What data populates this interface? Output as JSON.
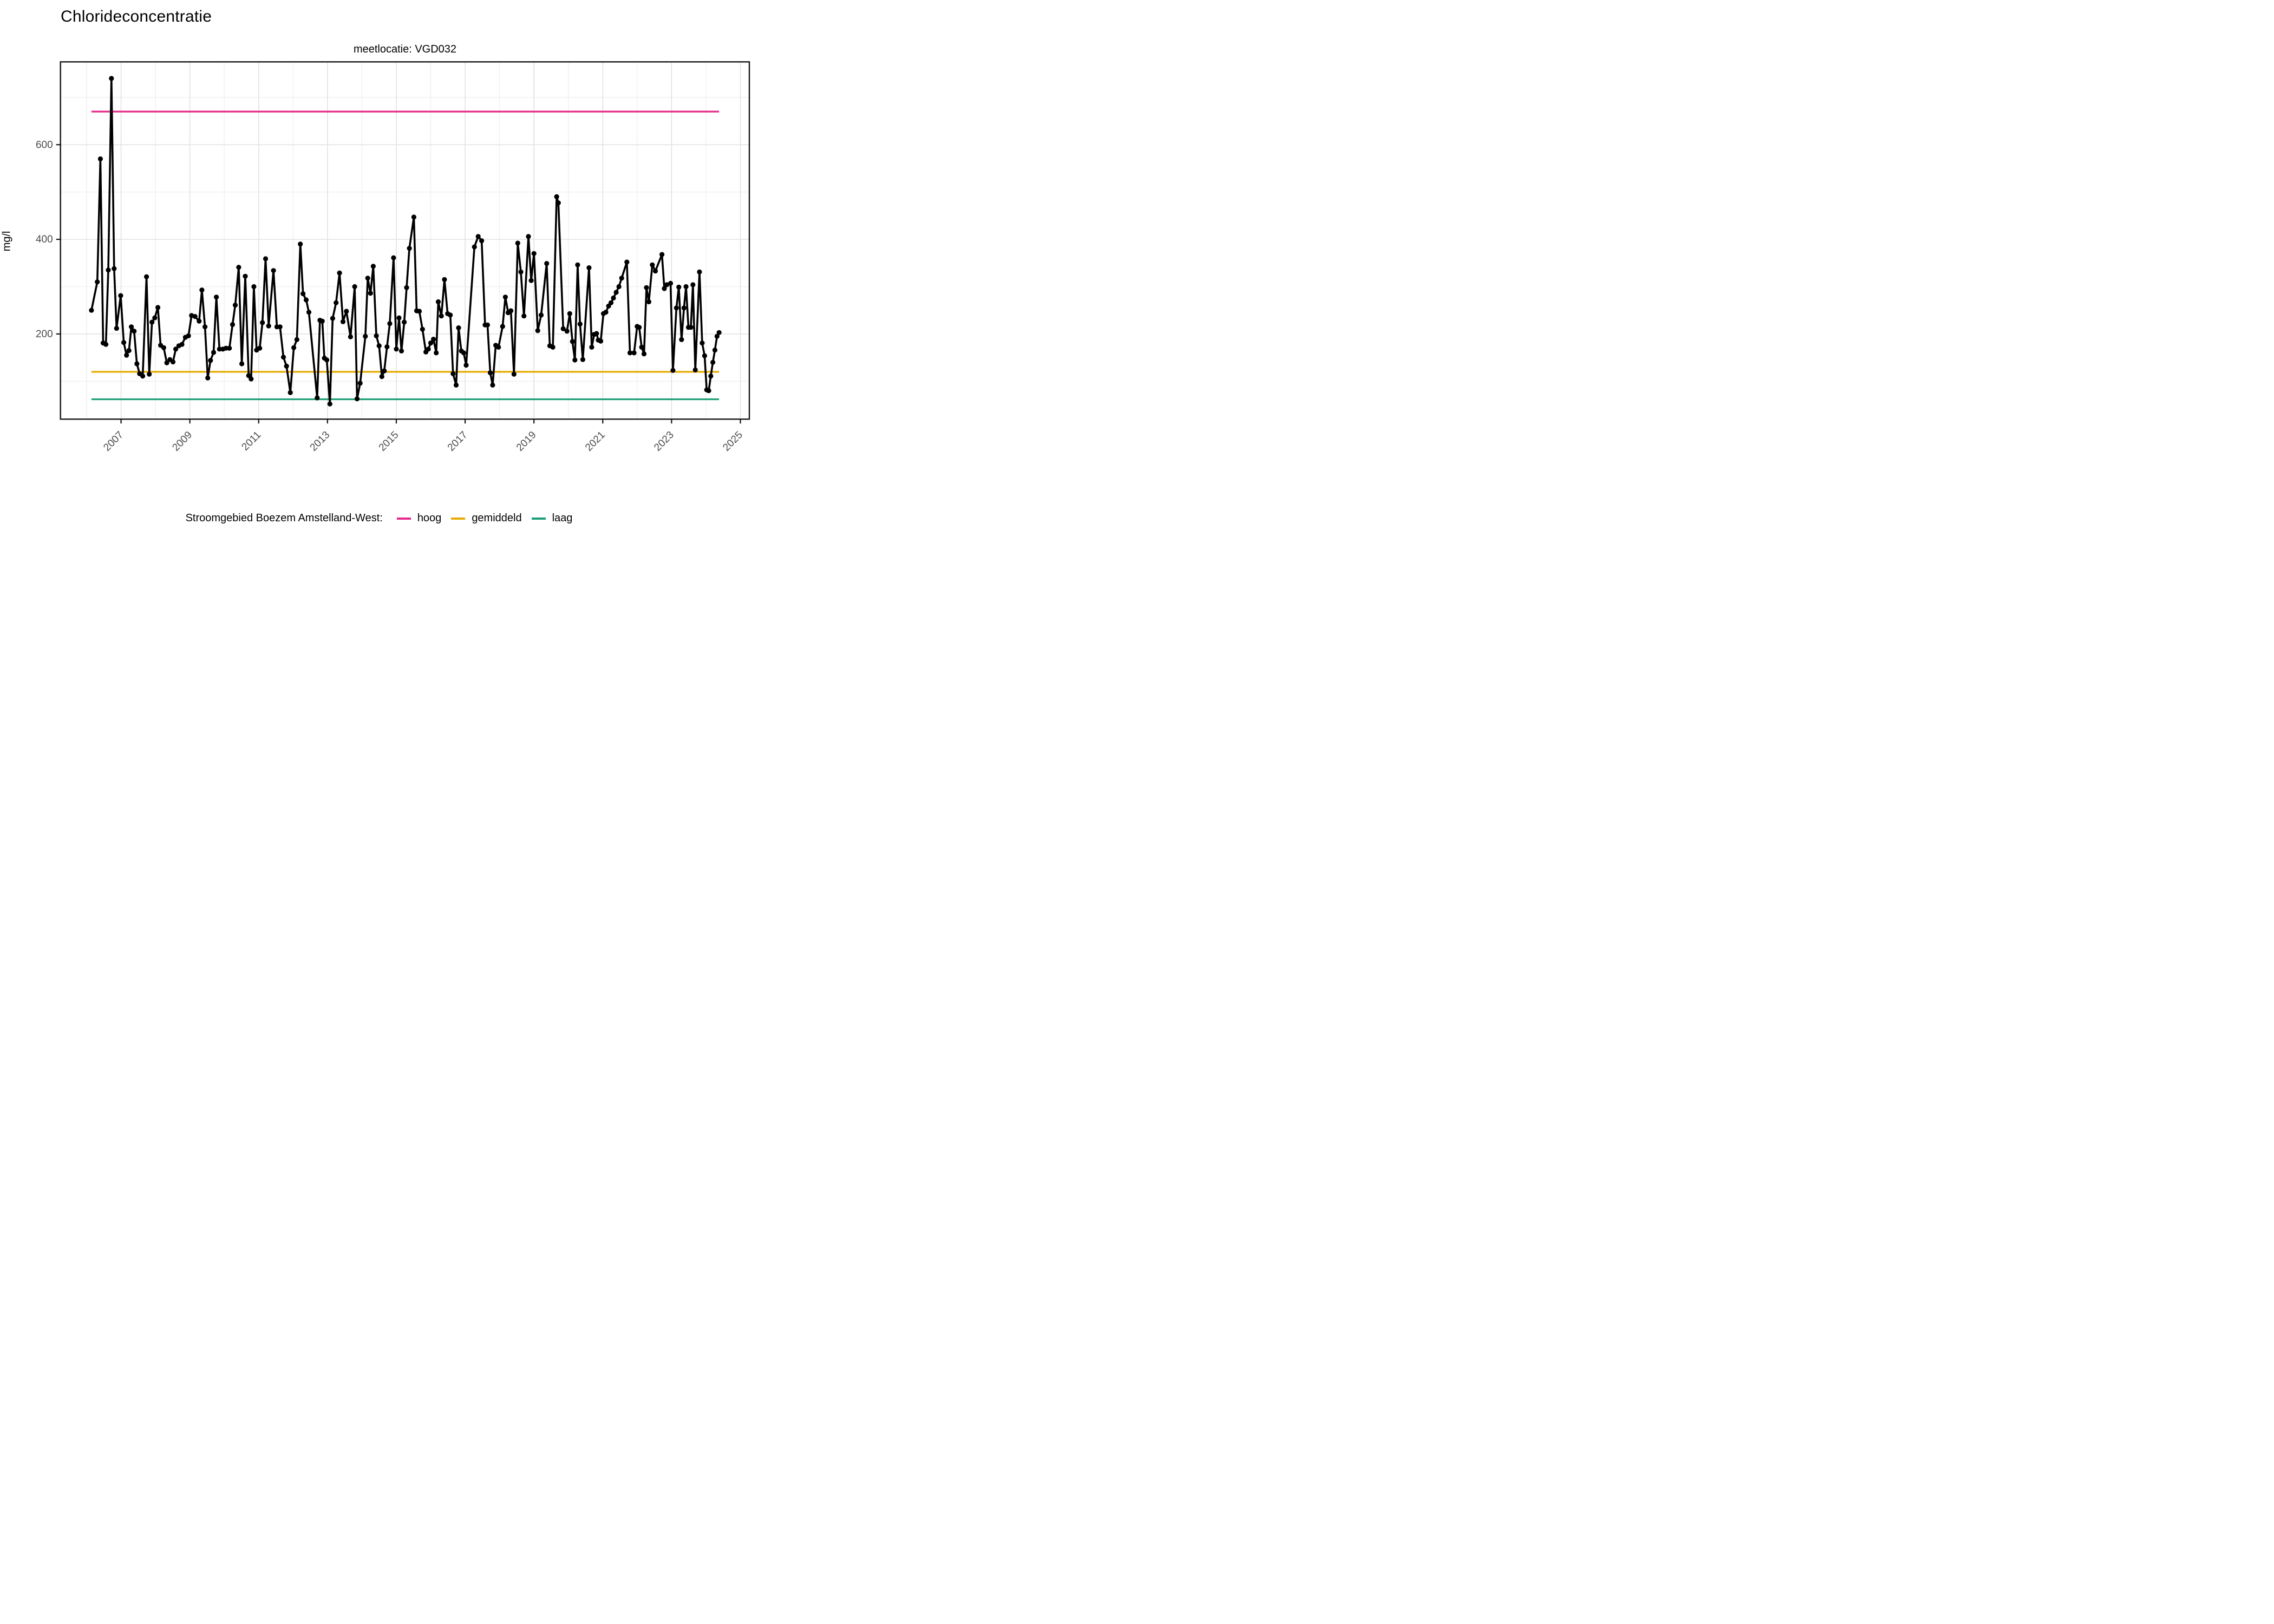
{
  "chart": {
    "title": "Chlorideconcentratie",
    "subtitle": "meetlocatie: VGD032",
    "y_axis_label": "mg/l",
    "legend": {
      "title": "Stroomgebied Boezem Amstelland-West:",
      "items": [
        {
          "label": "hoog",
          "color": "#E7298A"
        },
        {
          "label": "gemiddeld",
          "color": "#E6AB02"
        },
        {
          "label": "laag",
          "color": "#1B9E77"
        }
      ]
    }
  },
  "chart_data": {
    "type": "line",
    "title": "Chlorideconcentratie",
    "subtitle": "meetlocatie: VGD032",
    "xlabel": "",
    "ylabel": "mg/l",
    "grid": "on",
    "legend_position": "bottom",
    "xlim": [
      2005.24,
      2025.26
    ],
    "ylim": [
      20,
      775
    ],
    "x_ticks": [
      2007,
      2009,
      2011,
      2013,
      2015,
      2017,
      2019,
      2021,
      2023,
      2025
    ],
    "x_minor_ticks": [
      2006,
      2008,
      2010,
      2012,
      2014,
      2016,
      2018,
      2020,
      2022,
      2024
    ],
    "y_ticks": [
      200,
      400,
      600
    ],
    "y_minor_ticks": [
      100,
      300,
      500,
      700
    ],
    "tick_label_color": "#4D4D4D",
    "line_color": "#000000",
    "point_color": "#000000",
    "reference_lines": [
      {
        "label": "hoog",
        "value": 670,
        "color": "#E7298A",
        "x_start": 2006.14,
        "x_end": 2024.38
      },
      {
        "label": "gemiddeld",
        "value": 120,
        "color": "#E6AB02",
        "x_start": 2006.14,
        "x_end": 2024.38
      },
      {
        "label": "laag",
        "value": 62,
        "color": "#1B9E77",
        "x_start": 2006.14,
        "x_end": 2024.38
      }
    ],
    "series": [
      {
        "name": "chlorideconcentratie VGD032 (mg/l)",
        "points": [
          [
            2006.14,
            250
          ],
          [
            2006.31,
            310
          ],
          [
            2006.4,
            570
          ],
          [
            2006.48,
            181
          ],
          [
            2006.56,
            178
          ],
          [
            2006.63,
            335
          ],
          [
            2006.72,
            740
          ],
          [
            2006.8,
            338
          ],
          [
            2006.87,
            212
          ],
          [
            2006.99,
            281
          ],
          [
            2007.08,
            182
          ],
          [
            2007.16,
            155
          ],
          [
            2007.23,
            165
          ],
          [
            2007.3,
            215
          ],
          [
            2007.38,
            206
          ],
          [
            2007.46,
            137
          ],
          [
            2007.54,
            116
          ],
          [
            2007.63,
            111
          ],
          [
            2007.74,
            321
          ],
          [
            2007.82,
            115
          ],
          [
            2007.9,
            225
          ],
          [
            2007.98,
            234
          ],
          [
            2008.07,
            256
          ],
          [
            2008.15,
            176
          ],
          [
            2008.24,
            171
          ],
          [
            2008.33,
            139
          ],
          [
            2008.42,
            146
          ],
          [
            2008.51,
            141
          ],
          [
            2008.59,
            168
          ],
          [
            2008.68,
            175
          ],
          [
            2008.77,
            178
          ],
          [
            2008.87,
            193
          ],
          [
            2008.96,
            196
          ],
          [
            2009.05,
            239
          ],
          [
            2009.15,
            237
          ],
          [
            2009.27,
            227
          ],
          [
            2009.35,
            293
          ],
          [
            2009.44,
            215
          ],
          [
            2009.52,
            107
          ],
          [
            2009.6,
            144
          ],
          [
            2009.69,
            161
          ],
          [
            2009.77,
            278
          ],
          [
            2009.86,
            168
          ],
          [
            2009.96,
            168
          ],
          [
            2010.05,
            170
          ],
          [
            2010.15,
            170
          ],
          [
            2010.24,
            220
          ],
          [
            2010.32,
            261
          ],
          [
            2010.42,
            341
          ],
          [
            2010.51,
            137
          ],
          [
            2010.61,
            322
          ],
          [
            2010.71,
            112
          ],
          [
            2010.78,
            105
          ],
          [
            2010.86,
            300
          ],
          [
            2010.94,
            166
          ],
          [
            2011.03,
            170
          ],
          [
            2011.11,
            224
          ],
          [
            2011.2,
            359
          ],
          [
            2011.29,
            217
          ],
          [
            2011.43,
            334
          ],
          [
            2011.53,
            215
          ],
          [
            2011.62,
            215
          ],
          [
            2011.72,
            151
          ],
          [
            2011.81,
            132
          ],
          [
            2011.92,
            76
          ],
          [
            2012.02,
            171
          ],
          [
            2012.11,
            188
          ],
          [
            2012.21,
            390
          ],
          [
            2012.29,
            285
          ],
          [
            2012.38,
            272
          ],
          [
            2012.46,
            246
          ],
          [
            2012.7,
            65
          ],
          [
            2012.78,
            229
          ],
          [
            2012.85,
            227
          ],
          [
            2012.91,
            149
          ],
          [
            2012.98,
            145
          ],
          [
            2013.07,
            52
          ],
          [
            2013.15,
            233
          ],
          [
            2013.25,
            266
          ],
          [
            2013.35,
            329
          ],
          [
            2013.45,
            226
          ],
          [
            2013.55,
            248
          ],
          [
            2013.67,
            194
          ],
          [
            2013.79,
            300
          ],
          [
            2013.86,
            63
          ],
          [
            2013.95,
            96
          ],
          [
            2014.1,
            195
          ],
          [
            2014.17,
            318
          ],
          [
            2014.25,
            286
          ],
          [
            2014.33,
            343
          ],
          [
            2014.42,
            196
          ],
          [
            2014.5,
            175
          ],
          [
            2014.58,
            110
          ],
          [
            2014.65,
            122
          ],
          [
            2014.73,
            173
          ],
          [
            2014.81,
            222
          ],
          [
            2014.92,
            361
          ],
          [
            2015.0,
            168
          ],
          [
            2015.08,
            234
          ],
          [
            2015.15,
            164
          ],
          [
            2015.23,
            225
          ],
          [
            2015.3,
            298
          ],
          [
            2015.38,
            381
          ],
          [
            2015.51,
            447
          ],
          [
            2015.59,
            249
          ],
          [
            2015.67,
            248
          ],
          [
            2015.76,
            210
          ],
          [
            2015.86,
            162
          ],
          [
            2015.93,
            168
          ],
          [
            2016.0,
            181
          ],
          [
            2016.08,
            189
          ],
          [
            2016.16,
            160
          ],
          [
            2016.22,
            268
          ],
          [
            2016.31,
            238
          ],
          [
            2016.4,
            315
          ],
          [
            2016.49,
            243
          ],
          [
            2016.57,
            240
          ],
          [
            2016.65,
            116
          ],
          [
            2016.74,
            92
          ],
          [
            2016.81,
            213
          ],
          [
            2016.89,
            164
          ],
          [
            2016.96,
            160
          ],
          [
            2017.03,
            134
          ],
          [
            2017.27,
            384
          ],
          [
            2017.38,
            406
          ],
          [
            2017.48,
            397
          ],
          [
            2017.58,
            219
          ],
          [
            2017.65,
            219
          ],
          [
            2017.73,
            118
          ],
          [
            2017.8,
            92
          ],
          [
            2017.89,
            176
          ],
          [
            2017.97,
            172
          ],
          [
            2018.09,
            216
          ],
          [
            2018.17,
            278
          ],
          [
            2018.25,
            245
          ],
          [
            2018.33,
            249
          ],
          [
            2018.42,
            115
          ],
          [
            2018.53,
            392
          ],
          [
            2018.62,
            331
          ],
          [
            2018.71,
            238
          ],
          [
            2018.84,
            406
          ],
          [
            2018.92,
            313
          ],
          [
            2019.0,
            370
          ],
          [
            2019.11,
            207
          ],
          [
            2019.21,
            240
          ],
          [
            2019.37,
            349
          ],
          [
            2019.46,
            175
          ],
          [
            2019.55,
            172
          ],
          [
            2019.66,
            490
          ],
          [
            2019.71,
            477
          ],
          [
            2019.85,
            211
          ],
          [
            2019.96,
            206
          ],
          [
            2020.04,
            243
          ],
          [
            2020.12,
            184
          ],
          [
            2020.19,
            145
          ],
          [
            2020.27,
            346
          ],
          [
            2020.34,
            221
          ],
          [
            2020.42,
            146
          ],
          [
            2020.6,
            340
          ],
          [
            2020.68,
            172
          ],
          [
            2020.75,
            199
          ],
          [
            2020.82,
            201
          ],
          [
            2020.87,
            187
          ],
          [
            2020.94,
            185
          ],
          [
            2021.02,
            243
          ],
          [
            2021.09,
            246
          ],
          [
            2021.17,
            259
          ],
          [
            2021.24,
            266
          ],
          [
            2021.31,
            276
          ],
          [
            2021.39,
            288
          ],
          [
            2021.47,
            300
          ],
          [
            2021.55,
            318
          ],
          [
            2021.7,
            352
          ],
          [
            2021.79,
            160
          ],
          [
            2021.91,
            160
          ],
          [
            2022.0,
            216
          ],
          [
            2022.06,
            214
          ],
          [
            2022.13,
            172
          ],
          [
            2022.2,
            158
          ],
          [
            2022.27,
            298
          ],
          [
            2022.34,
            268
          ],
          [
            2022.44,
            346
          ],
          [
            2022.53,
            333
          ],
          [
            2022.72,
            368
          ],
          [
            2022.79,
            296
          ],
          [
            2022.86,
            304
          ],
          [
            2022.97,
            307
          ],
          [
            2023.04,
            123
          ],
          [
            2023.14,
            255
          ],
          [
            2023.21,
            299
          ],
          [
            2023.29,
            188
          ],
          [
            2023.36,
            255
          ],
          [
            2023.42,
            300
          ],
          [
            2023.49,
            214
          ],
          [
            2023.56,
            214
          ],
          [
            2023.62,
            304
          ],
          [
            2023.69,
            124
          ],
          [
            2023.81,
            331
          ],
          [
            2023.89,
            181
          ],
          [
            2023.96,
            154
          ],
          [
            2024.02,
            82
          ],
          [
            2024.08,
            80
          ],
          [
            2024.14,
            111
          ],
          [
            2024.2,
            140
          ],
          [
            2024.26,
            166
          ],
          [
            2024.32,
            195
          ],
          [
            2024.38,
            203
          ]
        ]
      }
    ]
  }
}
